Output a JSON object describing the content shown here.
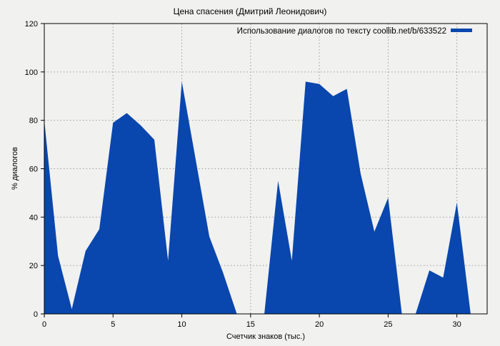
{
  "window": {
    "background_color": "#f1f1f0"
  },
  "chart_data": {
    "type": "area",
    "title": "Цена спасения (Дмитрий Леонидович)",
    "legend": "Использование диалогов по тексту coollib.net/b/633522",
    "legend_position": "top-right-inside",
    "xlabel": "Счетчик знаков (тыс.)",
    "ylabel": "% диалогов",
    "x": [
      0,
      1,
      2,
      3,
      4,
      5,
      6,
      7,
      8,
      9,
      10,
      11,
      12,
      13,
      14,
      15,
      16,
      17,
      18,
      19,
      20,
      21,
      22,
      23,
      24,
      25,
      26,
      27,
      28,
      29,
      30,
      31
    ],
    "values": [
      80,
      24,
      2,
      26,
      35,
      79,
      83,
      78,
      72,
      22,
      96,
      64,
      32,
      17,
      0,
      0,
      0,
      55,
      22,
      96,
      95,
      90,
      93,
      58,
      34,
      48,
      0,
      0,
      18,
      15,
      46,
      0
    ],
    "x_ticks": [
      "0",
      "5",
      "10",
      "15",
      "20",
      "25",
      "30"
    ],
    "x_tick_values": [
      0,
      5,
      10,
      15,
      20,
      25,
      30
    ],
    "y_ticks": [
      "0",
      "20",
      "40",
      "60",
      "80",
      "100",
      "120"
    ],
    "y_tick_values": [
      0,
      20,
      40,
      60,
      80,
      100,
      120
    ],
    "xlim": [
      0,
      32.2
    ],
    "ylim": [
      0,
      120
    ],
    "grid": true,
    "grid_style": "dotted",
    "colors": {
      "fill": "#0947ae",
      "grid": "#9a9a9a",
      "axis": "#000000",
      "background": "#f1f1f0"
    }
  }
}
